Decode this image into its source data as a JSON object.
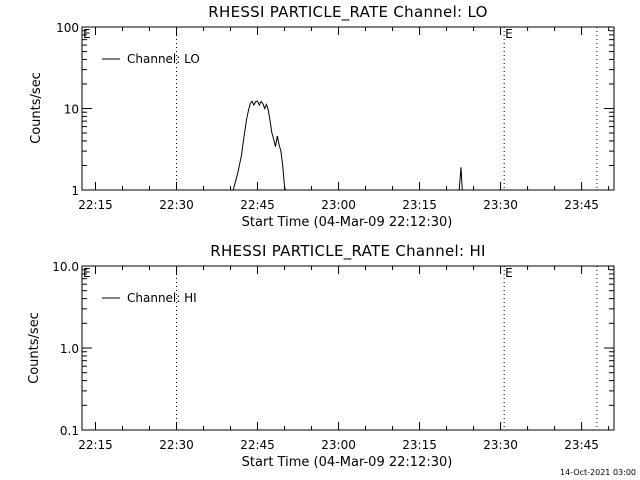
{
  "footer_stamp": "14-Oct-2021 03:00",
  "chart_data": [
    {
      "type": "line",
      "title": "RHESSI PARTICLE_RATE Channel: LO",
      "xlabel": "Start Time (04-Mar-09 22:12:30)",
      "ylabel": "Counts/sec",
      "yscale": "log",
      "ylim": [
        1,
        100
      ],
      "y_tick_labels": [
        "1",
        "10",
        "100"
      ],
      "y_tick_values": [
        1,
        10,
        100
      ],
      "x_tick_labels": [
        "22:15",
        "22:30",
        "22:45",
        "23:00",
        "23:15",
        "23:30",
        "23:45"
      ],
      "x_tick_values": [
        "22:15",
        "22:30",
        "22:45",
        "23:00",
        "23:15",
        "23:30",
        "23:45"
      ],
      "xlim": [
        "22:12:30",
        "23:51:00"
      ],
      "legend": {
        "placement": "top-left",
        "entries": [
          "Channel: LO"
        ]
      },
      "markers": [
        {
          "time": "22:12:30",
          "label": "E"
        },
        {
          "time": "22:30:00",
          "label": ""
        },
        {
          "time": "23:30:40",
          "label": "E"
        },
        {
          "time": "23:47:50",
          "label": ""
        }
      ],
      "series": [
        {
          "name": "Channel: LO",
          "x": [
            "22:40:30",
            "22:41:20",
            "22:42:00",
            "22:42:30",
            "22:43:00",
            "22:43:20",
            "22:43:40",
            "22:44:00",
            "22:44:20",
            "22:44:40",
            "22:45:00",
            "22:45:20",
            "22:45:40",
            "22:46:00",
            "22:46:20",
            "22:46:40",
            "22:47:00",
            "22:47:20",
            "22:47:40",
            "22:48:00",
            "22:48:20",
            "22:48:40",
            "22:49:00",
            "22:49:20",
            "22:49:40",
            "22:50:00",
            "22:50:10"
          ],
          "y": [
            1.0,
            1.6,
            2.6,
            4.5,
            7.5,
            9.5,
            11.5,
            12.3,
            11.0,
            12.2,
            12.3,
            11.0,
            12.2,
            11.5,
            10.0,
            11.2,
            9.5,
            7.0,
            5.0,
            4.2,
            3.4,
            4.6,
            3.6,
            3.0,
            2.0,
            1.1,
            1.0
          ]
        },
        {
          "name": "",
          "x": [
            "23:22:20",
            "23:22:40",
            "23:22:55",
            "23:23:10"
          ],
          "y": [
            1.0,
            1.9,
            1.0,
            1.0
          ]
        }
      ]
    },
    {
      "type": "line",
      "title": "RHESSI PARTICLE_RATE Channel: HI",
      "xlabel": "Start Time (04-Mar-09 22:12:30)",
      "ylabel": "Counts/sec",
      "yscale": "log",
      "ylim": [
        0.1,
        10
      ],
      "y_tick_labels": [
        "0.1",
        "1.0",
        "10.0"
      ],
      "y_tick_values": [
        0.1,
        1,
        10
      ],
      "x_tick_labels": [
        "22:15",
        "22:30",
        "22:45",
        "23:00",
        "23:15",
        "23:30",
        "23:45"
      ],
      "x_tick_values": [
        "22:15",
        "22:30",
        "22:45",
        "23:00",
        "23:15",
        "23:30",
        "23:45"
      ],
      "xlim": [
        "22:12:30",
        "23:51:00"
      ],
      "legend": {
        "placement": "top-left",
        "entries": [
          "Channel: HI"
        ]
      },
      "markers": [
        {
          "time": "22:12:30",
          "label": "E"
        },
        {
          "time": "22:30:00",
          "label": ""
        },
        {
          "time": "23:30:40",
          "label": "E"
        },
        {
          "time": "23:47:50",
          "label": ""
        }
      ],
      "series": [
        {
          "name": "Channel: HI",
          "x": [],
          "y": []
        }
      ]
    }
  ]
}
